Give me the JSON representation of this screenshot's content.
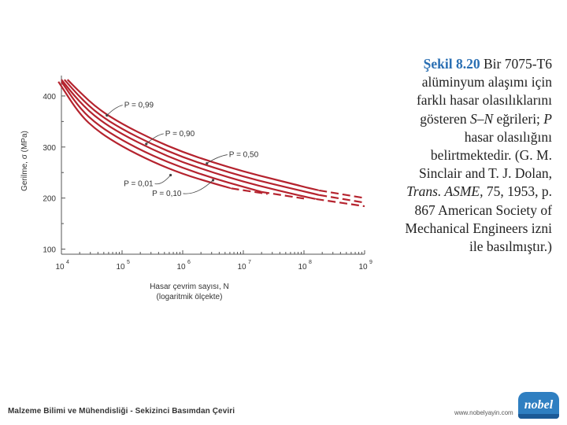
{
  "chart_data": {
    "type": "line",
    "xscale": "log",
    "xlim": [
      10000,
      1000000000
    ],
    "ylim": [
      90,
      440
    ],
    "xlabel": "Hasar çevrim sayısı, N",
    "xlabel_sub": "(logaritmik ölçekte)",
    "ylabel": "Gerilme, σ (MPa)",
    "xticks": [
      {
        "base": "10",
        "exp": "4"
      },
      {
        "base": "10",
        "exp": "5"
      },
      {
        "base": "10",
        "exp": "6"
      },
      {
        "base": "10",
        "exp": "7"
      },
      {
        "base": "10",
        "exp": "8"
      },
      {
        "base": "10",
        "exp": "9"
      }
    ],
    "yticks": [
      "100",
      "200",
      "300",
      "400"
    ],
    "ytick_values": [
      100,
      200,
      300,
      400
    ],
    "series": [
      {
        "name": "P = 0,99",
        "logN": [
          4.1,
          4.3,
          4.6,
          5.0,
          5.5,
          6.0,
          6.5,
          7.0,
          7.5,
          8.0,
          8.25
        ],
        "sigma": [
          432,
          408,
          375,
          345,
          315,
          290,
          270,
          252,
          237,
          222,
          215
        ],
        "dashed_logN": [
          8.25,
          9.0
        ],
        "dashed_sigma": [
          215,
          200
        ]
      },
      {
        "name": "P = 0,90",
        "logN": [
          4.05,
          4.3,
          4.6,
          5.0,
          5.5,
          6.0,
          6.5,
          7.0,
          7.5,
          8.0,
          8.25
        ],
        "sigma": [
          432,
          398,
          365,
          335,
          305,
          280,
          260,
          242,
          227,
          213,
          206
        ],
        "dashed_logN": [
          8.25,
          9.0
        ],
        "dashed_sigma": [
          206,
          191
        ]
      },
      {
        "name": "P = 0,50",
        "logN": [
          4.0,
          4.3,
          4.6,
          5.0,
          5.5,
          6.0,
          6.5,
          7.0,
          7.5,
          8.0,
          8.2
        ],
        "sigma": [
          432,
          388,
          355,
          325,
          295,
          270,
          250,
          232,
          217,
          203,
          198
        ],
        "dashed_logN": [
          8.2,
          9.0
        ],
        "dashed_sigma": [
          198,
          184
        ]
      },
      {
        "name": "P = 0,01",
        "logN": [
          4.0,
          4.3,
          4.6,
          5.0,
          5.5,
          6.0,
          6.5,
          7.0,
          7.3
        ],
        "sigma": [
          428,
          376,
          343,
          313,
          283,
          259,
          239,
          222,
          212
        ],
        "dashed_logN": [
          7.3,
          8.0
        ],
        "dashed_sigma": [
          212,
          199
        ]
      },
      {
        "name": "P = 0,10",
        "logN": [
          3.95,
          4.3,
          4.6,
          5.0,
          5.5,
          6.0,
          6.5,
          6.8
        ],
        "sigma": [
          428,
          364,
          331,
          301,
          271,
          247,
          229,
          219
        ],
        "dashed_logN": [
          6.8,
          7.4
        ],
        "dashed_sigma": [
          219,
          208
        ]
      }
    ],
    "annotations": [
      {
        "text": "P = 0,99",
        "at_logN": 4.75,
        "at_sigma": 362
      },
      {
        "text": "P = 0,90",
        "at_logN": 5.4,
        "at_sigma": 306
      },
      {
        "text": "P = 0,50",
        "at_logN": 6.4,
        "at_sigma": 268
      },
      {
        "text": "P = 0,01",
        "at_logN": 5.8,
        "at_sigma": 245
      },
      {
        "text": "P = 0,10",
        "at_logN": 6.5,
        "at_sigma": 235
      }
    ],
    "line_color": "#b5232e"
  },
  "caption": {
    "figure_label": "Şekil 8.20",
    "text_parts": [
      " Bir 7075-T6 alüminyum alaşımı için farklı hasar olasılıklarını gösteren ",
      "S–N",
      " eğrileri; ",
      "P",
      " hasar olasılığını belirtmektedir. (G. M. Sinclair and T. J. Dolan, ",
      "Trans. ASME,",
      " 75, 1953, p. 867 American Society of Mechanical Engineers izni ile basılmıştır.)"
    ]
  },
  "footer": {
    "book_title": "Malzeme Bilimi ve Mühendisliği - Sekizinci Basımdan Çeviri",
    "website": "www.nobelyayin.com",
    "logo_text": "nobel"
  }
}
